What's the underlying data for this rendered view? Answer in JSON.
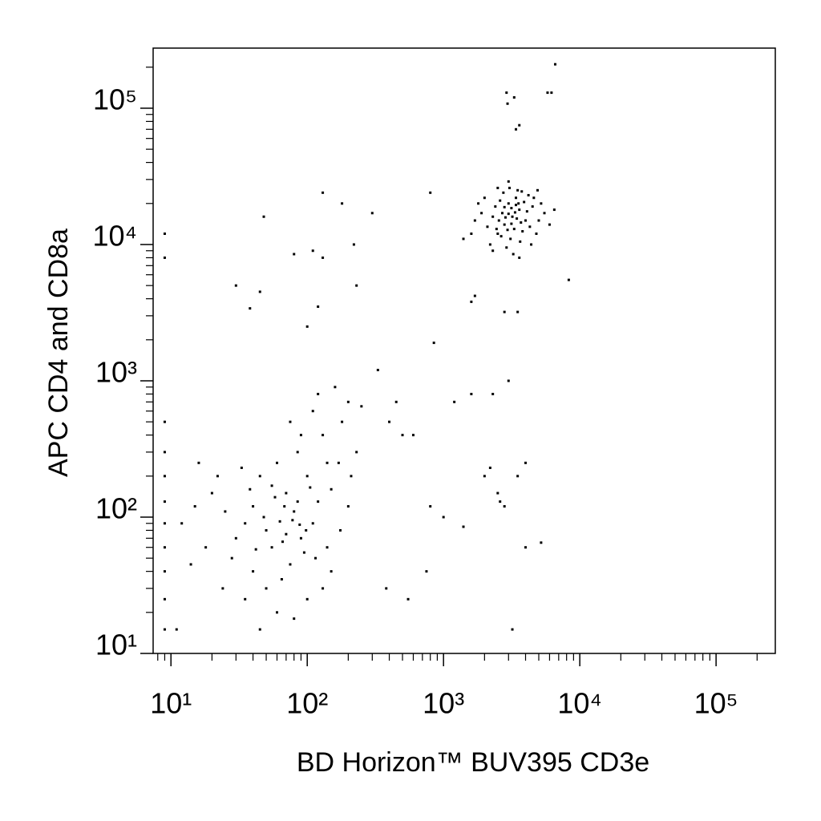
{
  "chart_data": {
    "type": "scatter",
    "x_label": "BD Horizon™ BUV395 CD3e",
    "y_label": "APC CD4 and CD8a",
    "color": "#000000",
    "xscale": "log",
    "yscale": "log",
    "xlim": [
      7.4,
      272000
    ],
    "ylim": [
      10,
      276000
    ],
    "xticks": [
      {
        "value": 10,
        "label": "10¹"
      },
      {
        "value": 100,
        "label": "10²"
      },
      {
        "value": 1000,
        "label": "10³"
      },
      {
        "value": 10000,
        "label": "10⁴"
      },
      {
        "value": 100000,
        "label": "10⁵"
      }
    ],
    "yticks": [
      {
        "value": 10,
        "label": "10¹"
      },
      {
        "value": 100,
        "label": "10²"
      },
      {
        "value": 1000,
        "label": "10³"
      },
      {
        "value": 10000,
        "label": "10⁴"
      },
      {
        "value": 100000,
        "label": "10⁵"
      }
    ],
    "xminorticks": [
      8,
      9,
      20,
      30,
      40,
      50,
      60,
      70,
      80,
      90,
      200,
      300,
      400,
      500,
      600,
      700,
      800,
      900,
      2000,
      3000,
      4000,
      5000,
      6000,
      7000,
      8000,
      9000,
      20000,
      30000,
      40000,
      50000,
      60000,
      70000,
      80000,
      90000,
      200000
    ],
    "yminorticks": [
      20,
      30,
      40,
      50,
      60,
      70,
      80,
      90,
      200,
      300,
      400,
      500,
      600,
      700,
      800,
      900,
      2000,
      3000,
      4000,
      5000,
      6000,
      7000,
      8000,
      9000,
      20000,
      30000,
      40000,
      50000,
      60000,
      70000,
      80000,
      90000,
      200000
    ],
    "x": [
      3200,
      2800,
      3600,
      3000,
      2500,
      4000,
      3400,
      2700,
      3800,
      4500,
      2300,
      3100,
      3500,
      2600,
      4200,
      2900,
      3300,
      3700,
      2400,
      5000,
      2100,
      4800,
      3900,
      2750,
      3150,
      3450,
      2950,
      4100,
      2550,
      3650,
      3250,
      5500,
      1900,
      4400,
      2200,
      3050,
      3550,
      2850,
      3350,
      4600,
      2000,
      6000,
      3750,
      2450,
      3150,
      2650,
      4300,
      3000,
      3400,
      2800,
      1700,
      1600,
      2300,
      3600,
      5200,
      6500,
      1800,
      4900,
      3000,
      2500,
      2900,
      3300,
      2950,
      3400,
      3600,
      6200,
      6600,
      5800,
      8300,
      3500,
      2800,
      1600,
      1400,
      1700,
      63,
      50,
      80,
      70,
      40,
      90,
      55,
      100,
      120,
      35,
      75,
      60,
      45,
      110,
      150,
      85,
      30,
      25,
      130,
      95,
      65,
      50,
      140,
      20,
      170,
      180,
      200,
      110,
      75,
      40,
      18,
      22,
      15,
      35,
      60,
      100,
      130,
      80,
      45,
      120,
      160,
      90,
      55,
      70,
      85,
      105,
      48,
      68,
      38,
      58,
      78,
      98,
      28,
      115,
      200,
      230,
      250,
      33,
      140,
      12,
      14,
      16,
      24,
      11,
      150,
      175,
      210,
      66,
      42,
      88,
      9,
      9,
      9,
      9,
      9,
      9,
      9,
      9,
      9,
      9,
      9,
      48,
      130,
      30,
      38,
      110,
      80,
      130,
      45,
      120,
      100,
      180,
      220,
      230,
      300,
      330,
      400,
      450,
      500,
      600,
      800,
      850,
      1200,
      1000,
      1400,
      2000,
      2200,
      2500,
      2800,
      3500,
      4000,
      4000,
      5200,
      3200,
      1600,
      2300,
      3000,
      380,
      750,
      550,
      800,
      2600
    ],
    "y": [
      16000,
      14000,
      18000,
      20000,
      12000,
      15000,
      22000,
      17000,
      12500,
      19000,
      16000,
      11000,
      25000,
      21000,
      23000,
      9500,
      13000,
      14500,
      19000,
      15000,
      13500,
      12000,
      20500,
      24000,
      18500,
      15500,
      12800,
      17500,
      15000,
      10500,
      8500,
      17000,
      17000,
      10000,
      10000,
      26000,
      20000,
      15800,
      17200,
      22000,
      22000,
      14000,
      24500,
      13000,
      14200,
      11500,
      13500,
      16800,
      19500,
      18800,
      15000,
      12000,
      9000,
      8000,
      20000,
      18000,
      20000,
      25000,
      29000,
      26000,
      130000,
      120000,
      108000,
      70000,
      75000,
      130000,
      210000,
      130000,
      5500,
      3200,
      3200,
      3800,
      11000,
      4200,
      93,
      80,
      110,
      150,
      120,
      70,
      60,
      200,
      130,
      90,
      45,
      250,
      200,
      90,
      160,
      300,
      70,
      110,
      400,
      55,
      35,
      30,
      60,
      150,
      250,
      500,
      700,
      600,
      500,
      40,
      60,
      200,
      120,
      25,
      20,
      25,
      30,
      18,
      15,
      800,
      900,
      400,
      170,
      75,
      130,
      165,
      100,
      120,
      160,
      140,
      95,
      80,
      50,
      50,
      120,
      300,
      650,
      230,
      250,
      90,
      45,
      250,
      30,
      15,
      40,
      80,
      200,
      66,
      58,
      88,
      15,
      25,
      40,
      60,
      90,
      130,
      200,
      300,
      500,
      12000,
      8000,
      16000,
      24000,
      5000,
      3400,
      9000,
      8500,
      8000,
      4500,
      3500,
      2500,
      20000,
      10000,
      5000,
      17000,
      1200,
      500,
      700,
      400,
      400,
      24000,
      1900,
      700,
      100,
      85,
      200,
      230,
      150,
      120,
      200,
      250,
      60,
      65,
      15,
      800,
      800,
      1000,
      30,
      40,
      25,
      120,
      130
    ]
  }
}
